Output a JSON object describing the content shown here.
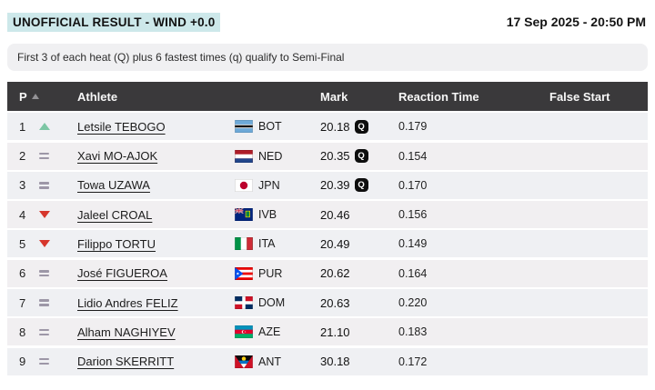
{
  "header": {
    "status_badge": "UNOFFICIAL RESULT - WIND +0.0",
    "datetime": "17 Sep 2025 - 20:50 PM"
  },
  "note": "First 3 of each heat (Q) plus 6 fastest times (q) qualify to Semi-Final",
  "table": {
    "columns": {
      "position": "P",
      "athlete": "Athlete",
      "mark": "Mark",
      "reaction_time": "Reaction Time",
      "false_start": "False Start"
    },
    "sort": {
      "column": "position",
      "direction": "ascending"
    },
    "rows": [
      {
        "pos": "1",
        "trend": "up",
        "name": "Letsile TEBOGO",
        "country": "BOT",
        "mark": "20.18",
        "qualified": "Q",
        "reaction": "0.179",
        "false_start": ""
      },
      {
        "pos": "2",
        "trend": "same",
        "name": "Xavi MO-AJOK",
        "country": "NED",
        "mark": "20.35",
        "qualified": "Q",
        "reaction": "0.154",
        "false_start": ""
      },
      {
        "pos": "3",
        "trend": "same",
        "name": "Towa UZAWA",
        "country": "JPN",
        "mark": "20.39",
        "qualified": "Q",
        "reaction": "0.170",
        "false_start": ""
      },
      {
        "pos": "4",
        "trend": "down",
        "name": "Jaleel CROAL",
        "country": "IVB",
        "mark": "20.46",
        "qualified": "",
        "reaction": "0.156",
        "false_start": ""
      },
      {
        "pos": "5",
        "trend": "down",
        "name": "Filippo TORTU",
        "country": "ITA",
        "mark": "20.49",
        "qualified": "",
        "reaction": "0.149",
        "false_start": ""
      },
      {
        "pos": "6",
        "trend": "same",
        "name": "José FIGUEROA",
        "country": "PUR",
        "mark": "20.62",
        "qualified": "",
        "reaction": "0.164",
        "false_start": ""
      },
      {
        "pos": "7",
        "trend": "same",
        "name": "Lidio Andres FELIZ",
        "country": "DOM",
        "mark": "20.63",
        "qualified": "",
        "reaction": "0.220",
        "false_start": ""
      },
      {
        "pos": "8",
        "trend": "same",
        "name": "Alham NAGHIYEV",
        "country": "AZE",
        "mark": "21.10",
        "qualified": "",
        "reaction": "0.183",
        "false_start": ""
      },
      {
        "pos": "9",
        "trend": "same",
        "name": "Darion SKERRITT",
        "country": "ANT",
        "mark": "30.18",
        "qualified": "",
        "reaction": "0.172",
        "false_start": ""
      }
    ]
  },
  "colors": {
    "headerbg": "#3a393b",
    "rowbg": "#f0f0f2",
    "badgebg": "#cde8ea",
    "green": "#7cc6a4",
    "red": "#d6362c",
    "eq": "#9d97a7"
  }
}
